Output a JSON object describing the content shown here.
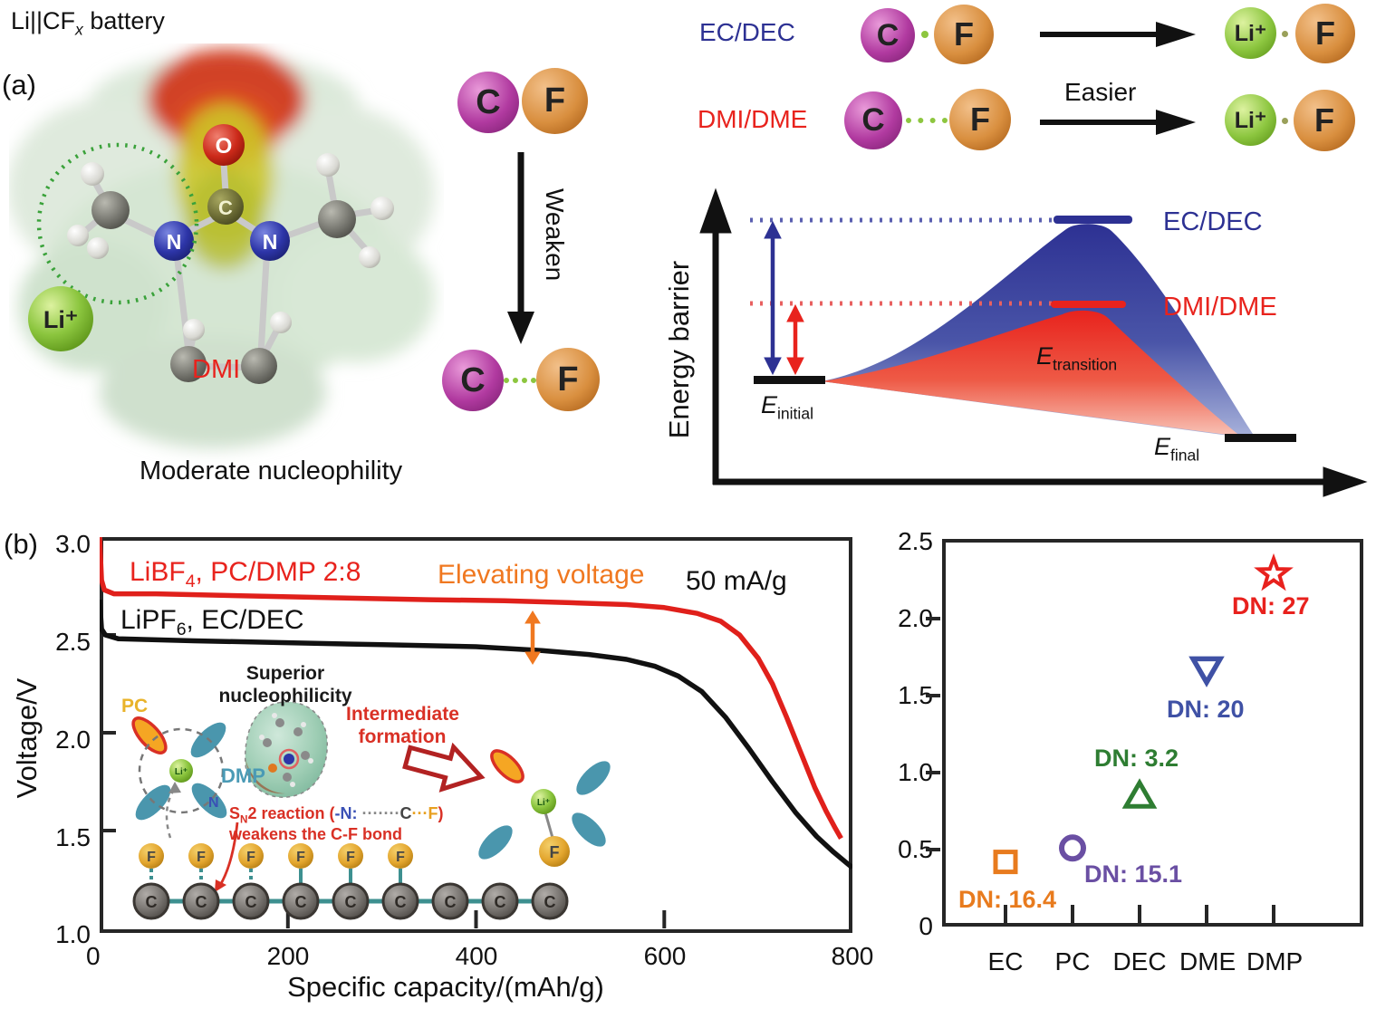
{
  "atoms": {
    "c": "C",
    "f": "F",
    "o": "O",
    "n": "N",
    "li": "Li⁺"
  },
  "panel_a": {
    "label": "(a)",
    "title": {
      "pre": "Li||CF",
      "sub": "x",
      "post": " battery"
    },
    "molecule": {
      "name": "DMI",
      "caption": "Moderate nucleophility"
    },
    "weaken_label": "Weaken",
    "reactions": {
      "row1_label": "EC/DEC",
      "row2_label": "DMI/DME",
      "easier": "Easier",
      "row1_color": "#2d3193",
      "row2_color": "#e8231d"
    },
    "energy_diagram": {
      "ylabel": "Energy barrier",
      "curve1": "EC/DEC",
      "curve2": "DMI/DME",
      "curve1_color": "#2d3193",
      "curve2_color": "#e8231d",
      "e": "E",
      "initial_sub": "initial",
      "transition_sub": "transition",
      "final_sub": "final"
    }
  },
  "panel_b": {
    "label": "(b)",
    "left_chart": {
      "ylabel": "Voltage/V",
      "xlabel": "Specific capacity/(mAh/g)",
      "salt1_pre": "LiBF",
      "salt1_sub": "4",
      "salt1_post": ", PC/DMP 2:8",
      "salt2_pre": "LiPF",
      "salt2_sub": "6",
      "salt2_post": ", EC/DEC",
      "elevating": "Elevating voltage",
      "rate": "50 mA/g"
    },
    "inset": {
      "pc": "PC",
      "dmp": "DMP",
      "n_label": "N",
      "superior_1": "Superior",
      "superior_2": "nucleophilicity",
      "intermediate_1": "Intermediate",
      "intermediate_2": "formation",
      "sn2": {
        "s": "S",
        "n_sub": "N",
        "rest": "2 reaction (",
        "nu": "-N:",
        "dots1": " ·······",
        "c": "C",
        "dots2": "···",
        "f": "F",
        "close": ")"
      },
      "weakens": "weakens the C-F bond",
      "chain": {
        "carbons": 9,
        "fluorines": 6,
        "dashed_bonds": 3
      }
    }
  },
  "chart_data": [
    {
      "type": "line",
      "xlabel": "Specific capacity/(mAh/g)",
      "ylabel": "Voltage/V",
      "xlim": [
        0,
        800
      ],
      "ylim": [
        1.0,
        3.0
      ],
      "xticks": [
        "0",
        "200",
        "400",
        "600",
        "800"
      ],
      "yticks": [
        "3.0",
        "2.5",
        "2.0",
        "1.5",
        "1.0"
      ],
      "annotations": [
        "Elevating voltage",
        "50 mA/g"
      ],
      "series": [
        {
          "name": "LiBF4, PC/DMP 2:8",
          "color": "#e0201b",
          "points": [
            [
              0,
              3.0
            ],
            [
              2,
              2.78
            ],
            [
              5,
              2.73
            ],
            [
              15,
              2.71
            ],
            [
              60,
              2.71
            ],
            [
              150,
              2.7
            ],
            [
              250,
              2.69
            ],
            [
              350,
              2.68
            ],
            [
              430,
              2.675
            ],
            [
              500,
              2.665
            ],
            [
              560,
              2.655
            ],
            [
              600,
              2.64
            ],
            [
              635,
              2.61
            ],
            [
              660,
              2.57
            ],
            [
              680,
              2.5
            ],
            [
              700,
              2.38
            ],
            [
              715,
              2.25
            ],
            [
              730,
              2.08
            ],
            [
              745,
              1.9
            ],
            [
              760,
              1.72
            ],
            [
              772,
              1.6
            ],
            [
              782,
              1.51
            ],
            [
              788,
              1.46
            ]
          ]
        },
        {
          "name": "LiPF6, EC/DEC",
          "color": "#111111",
          "points": [
            [
              0,
              2.68
            ],
            [
              2,
              2.53
            ],
            [
              6,
              2.5
            ],
            [
              20,
              2.48
            ],
            [
              100,
              2.47
            ],
            [
              200,
              2.46
            ],
            [
              300,
              2.45
            ],
            [
              400,
              2.44
            ],
            [
              470,
              2.42
            ],
            [
              520,
              2.4
            ],
            [
              560,
              2.375
            ],
            [
              590,
              2.34
            ],
            [
              615,
              2.29
            ],
            [
              640,
              2.21
            ],
            [
              665,
              2.08
            ],
            [
              690,
              1.92
            ],
            [
              715,
              1.75
            ],
            [
              740,
              1.59
            ],
            [
              762,
              1.47
            ],
            [
              780,
              1.39
            ],
            [
              795,
              1.33
            ],
            [
              800,
              1.31
            ]
          ]
        }
      ]
    },
    {
      "type": "scatter",
      "ylim": [
        0,
        2.5
      ],
      "yticks": [
        "2.5",
        "2.0",
        "1.5",
        "1.0",
        "0.5",
        "0"
      ],
      "categories": [
        "EC",
        "PC",
        "DEC",
        "DME",
        "DMP"
      ],
      "points": [
        {
          "solvent": "EC",
          "value": 0.42,
          "dn_label": "DN: 16.4",
          "marker": "square",
          "color": "#e87b1e"
        },
        {
          "solvent": "PC",
          "value": 0.51,
          "dn_label": "DN: 15.1",
          "marker": "circle",
          "color": "#6a4fa3"
        },
        {
          "solvent": "DEC",
          "value": 0.84,
          "dn_label": "DN: 3.2",
          "marker": "triangle-up",
          "color": "#2e7d32"
        },
        {
          "solvent": "DME",
          "value": 1.68,
          "dn_label": "DN: 20",
          "marker": "triangle-down",
          "color": "#3f51a5"
        },
        {
          "solvent": "DMP",
          "value": 2.29,
          "dn_label": "DN: 27",
          "marker": "star",
          "color": "#e8211d"
        }
      ]
    }
  ]
}
